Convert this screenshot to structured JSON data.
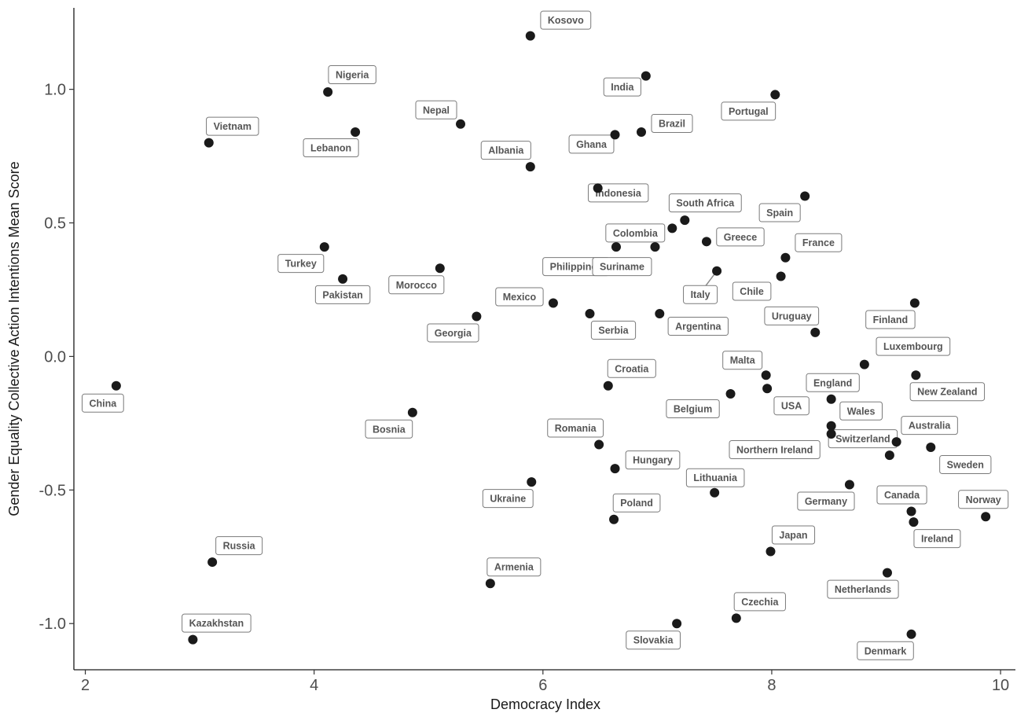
{
  "chart_data": {
    "type": "scatter",
    "title": "",
    "xlabel": "Democracy Index",
    "ylabel": "Gender Equality Collective Action Intentions Mean Score",
    "xlim": [
      1.9,
      10.13
    ],
    "ylim": [
      -1.173,
      1.305
    ],
    "x_ticks": [
      2,
      4,
      6,
      8,
      10
    ],
    "x_tick_labels": [
      "2",
      "4",
      "6",
      "8",
      "10"
    ],
    "y_ticks": [
      1.0,
      0.5,
      0.0,
      -0.5,
      -1.0
    ],
    "y_tick_labels": [
      "1.0",
      "0.5",
      "0.0",
      "-0.5",
      "-1.0"
    ],
    "grid": false,
    "point_color": "#1a1a1a",
    "label_border_color": "#7a7a7a",
    "label_text_color": "#555555",
    "points": [
      {
        "name": "Kosovo",
        "x": 5.89,
        "y": 1.2
      },
      {
        "name": "India",
        "x": 6.9,
        "y": 1.05
      },
      {
        "name": "Nigeria",
        "x": 4.12,
        "y": 0.99
      },
      {
        "name": "Portugal",
        "x": 8.03,
        "y": 0.98
      },
      {
        "name": "Nepal",
        "x": 5.28,
        "y": 0.87
      },
      {
        "name": "Brazil",
        "x": 6.86,
        "y": 0.84
      },
      {
        "name": "Lebanon",
        "x": 4.36,
        "y": 0.84
      },
      {
        "name": "Ghana",
        "x": 6.63,
        "y": 0.83
      },
      {
        "name": "Vietnam",
        "x": 3.08,
        "y": 0.8
      },
      {
        "name": "Albania",
        "x": 5.89,
        "y": 0.71
      },
      {
        "name": "Indonesia",
        "x": 6.48,
        "y": 0.63
      },
      {
        "name": "Spain",
        "x": 8.29,
        "y": 0.6
      },
      {
        "name": "South Africa",
        "x": 7.24,
        "y": 0.51
      },
      {
        "name": "Colombia",
        "x": 7.13,
        "y": 0.48
      },
      {
        "name": "Greece",
        "x": 7.43,
        "y": 0.43
      },
      {
        "name": "Turkey",
        "x": 4.09,
        "y": 0.41
      },
      {
        "name": "Philippines",
        "x": 6.64,
        "y": 0.41
      },
      {
        "name": "Suriname",
        "x": 6.98,
        "y": 0.41
      },
      {
        "name": "France",
        "x": 8.12,
        "y": 0.37
      },
      {
        "name": "Morocco",
        "x": 5.1,
        "y": 0.33
      },
      {
        "name": "Italy",
        "x": 7.52,
        "y": 0.32
      },
      {
        "name": "Chile",
        "x": 8.08,
        "y": 0.3
      },
      {
        "name": "Pakistan",
        "x": 4.25,
        "y": 0.29
      },
      {
        "name": "Mexico",
        "x": 6.09,
        "y": 0.2
      },
      {
        "name": "Finland",
        "x": 9.25,
        "y": 0.2
      },
      {
        "name": "Serbia",
        "x": 6.41,
        "y": 0.16
      },
      {
        "name": "Argentina",
        "x": 7.02,
        "y": 0.16
      },
      {
        "name": "Georgia",
        "x": 5.42,
        "y": 0.15
      },
      {
        "name": "Uruguay",
        "x": 8.38,
        "y": 0.09
      },
      {
        "name": "Luxembourg",
        "x": 8.81,
        "y": -0.03
      },
      {
        "name": "Malta",
        "x": 7.95,
        "y": -0.07
      },
      {
        "name": "New Zealand",
        "x": 9.26,
        "y": -0.07
      },
      {
        "name": "China",
        "x": 2.27,
        "y": -0.11
      },
      {
        "name": "Croatia",
        "x": 6.57,
        "y": -0.11
      },
      {
        "name": "USA",
        "x": 7.96,
        "y": -0.12
      },
      {
        "name": "Belgium",
        "x": 7.64,
        "y": -0.14
      },
      {
        "name": "England",
        "x": 8.52,
        "y": -0.16
      },
      {
        "name": "Bosnia",
        "x": 4.86,
        "y": -0.21
      },
      {
        "name": "Wales",
        "x": 8.52,
        "y": -0.26
      },
      {
        "name": "Northern Ireland",
        "x": 8.52,
        "y": -0.29
      },
      {
        "name": "Australia",
        "x": 9.09,
        "y": -0.32
      },
      {
        "name": "Romania",
        "x": 6.49,
        "y": -0.33
      },
      {
        "name": "Sweden",
        "x": 9.39,
        "y": -0.34
      },
      {
        "name": "Switzerland",
        "x": 9.03,
        "y": -0.37
      },
      {
        "name": "Hungary",
        "x": 6.63,
        "y": -0.42
      },
      {
        "name": "Ukraine",
        "x": 5.9,
        "y": -0.47
      },
      {
        "name": "Germany",
        "x": 8.68,
        "y": -0.48
      },
      {
        "name": "Lithuania",
        "x": 7.5,
        "y": -0.51
      },
      {
        "name": "Canada",
        "x": 9.22,
        "y": -0.58
      },
      {
        "name": "Norway",
        "x": 9.87,
        "y": -0.6
      },
      {
        "name": "Poland",
        "x": 6.62,
        "y": -0.61
      },
      {
        "name": "Ireland",
        "x": 9.24,
        "y": -0.62
      },
      {
        "name": "Japan",
        "x": 7.99,
        "y": -0.73
      },
      {
        "name": "Russia",
        "x": 3.11,
        "y": -0.77
      },
      {
        "name": "Netherlands",
        "x": 9.01,
        "y": -0.81
      },
      {
        "name": "Armenia",
        "x": 5.54,
        "y": -0.85
      },
      {
        "name": "Czechia",
        "x": 7.69,
        "y": -0.98
      },
      {
        "name": "Slovakia",
        "x": 7.17,
        "y": -1.0
      },
      {
        "name": "Denmark",
        "x": 9.22,
        "y": -1.04
      },
      {
        "name": "Kazakhstan",
        "x": 2.94,
        "y": -1.06
      }
    ]
  }
}
